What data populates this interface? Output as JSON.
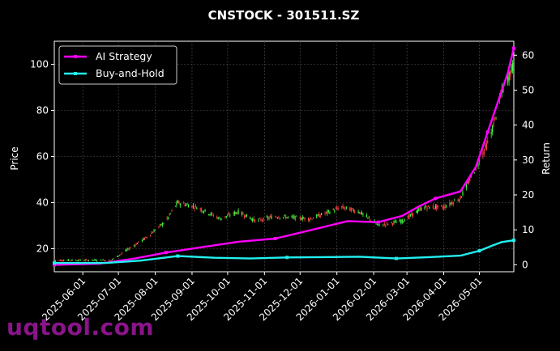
{
  "watermark": "uqtool.com",
  "chart_data": {
    "type": "line",
    "title": "CNSTOCK - 301511.SZ",
    "ylabel_left": "Price",
    "ylabel_right": "Return",
    "ylim_left": [
      10,
      110
    ],
    "ylim_right": [
      -2,
      64
    ],
    "xlim": [
      "2025-05-08",
      "2026-05-30"
    ],
    "left_ticks": [
      20,
      40,
      60,
      80,
      100
    ],
    "right_ticks": [
      0,
      10,
      20,
      30,
      40,
      50,
      60
    ],
    "x_ticks": [
      "2025-06-01",
      "2025-07-01",
      "2025-08-01",
      "2025-09-01",
      "2025-10-01",
      "2025-11-01",
      "2025-12-01",
      "2026-01-01",
      "2026-02-01",
      "2026-03-01",
      "2026-04-01",
      "2026-05-01"
    ],
    "grid": true,
    "legend_position": "top-left",
    "colors": {
      "ai": "#ff00ff",
      "bh": "#22f0f0",
      "up": "#44ff44",
      "down": "#ff4444",
      "grid": "#555555"
    },
    "series": [
      {
        "name": "AI Strategy",
        "points": [
          [
            "2025-05-08",
            0
          ],
          [
            "2025-06-15",
            0.3
          ],
          [
            "2025-07-15",
            1.8
          ],
          [
            "2025-08-10",
            3.5
          ],
          [
            "2025-09-05",
            4.8
          ],
          [
            "2025-10-10",
            6.6
          ],
          [
            "2025-11-10",
            7.5
          ],
          [
            "2025-12-05",
            9.5
          ],
          [
            "2026-01-10",
            12.5
          ],
          [
            "2026-02-05",
            12.2
          ],
          [
            "2026-02-25",
            14.0
          ],
          [
            "2026-03-10",
            16.5
          ],
          [
            "2026-03-25",
            19.0
          ],
          [
            "2026-04-15",
            21.0
          ],
          [
            "2026-04-28",
            28.0
          ],
          [
            "2026-05-08",
            38.0
          ],
          [
            "2026-05-18",
            48.0
          ],
          [
            "2026-05-25",
            55.0
          ],
          [
            "2026-05-30",
            62.0
          ]
        ]
      },
      {
        "name": "Buy-and-Hold",
        "points": [
          [
            "2025-05-08",
            0.5
          ],
          [
            "2025-06-20",
            0.5
          ],
          [
            "2025-07-20",
            1.2
          ],
          [
            "2025-08-20",
            2.5
          ],
          [
            "2025-09-20",
            2.0
          ],
          [
            "2025-10-20",
            1.8
          ],
          [
            "2025-11-20",
            2.1
          ],
          [
            "2025-12-20",
            2.2
          ],
          [
            "2026-01-20",
            2.3
          ],
          [
            "2026-02-20",
            1.8
          ],
          [
            "2026-03-20",
            2.2
          ],
          [
            "2026-04-15",
            2.6
          ],
          [
            "2026-05-01",
            4.0
          ],
          [
            "2026-05-12",
            5.5
          ],
          [
            "2026-05-20",
            6.5
          ],
          [
            "2026-05-30",
            7.0
          ]
        ]
      }
    ],
    "price_path": [
      [
        "2025-05-08",
        15
      ],
      [
        "2025-06-25",
        15
      ],
      [
        "2025-07-10",
        20
      ],
      [
        "2025-07-25",
        25
      ],
      [
        "2025-08-10",
        32
      ],
      [
        "2025-08-20",
        40
      ],
      [
        "2025-09-05",
        38
      ],
      [
        "2025-09-25",
        33
      ],
      [
        "2025-10-10",
        36
      ],
      [
        "2025-10-25",
        32
      ],
      [
        "2025-11-10",
        34
      ],
      [
        "2025-12-10",
        33
      ],
      [
        "2026-01-05",
        38
      ],
      [
        "2026-01-20",
        36
      ],
      [
        "2026-02-05",
        30
      ],
      [
        "2026-02-25",
        32
      ],
      [
        "2026-03-15",
        38
      ],
      [
        "2026-04-01",
        38
      ],
      [
        "2026-04-15",
        42
      ],
      [
        "2026-04-28",
        55
      ],
      [
        "2026-05-10",
        68
      ],
      [
        "2026-05-20",
        88
      ],
      [
        "2026-05-30",
        100
      ]
    ]
  }
}
